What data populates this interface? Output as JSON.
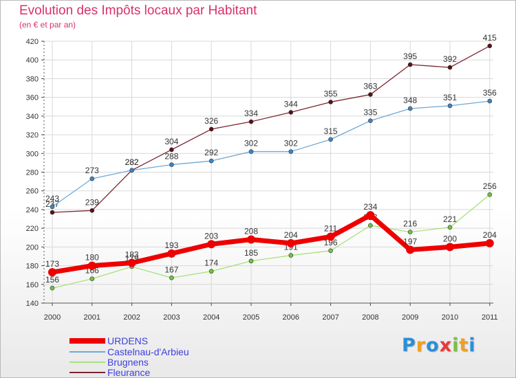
{
  "header": {
    "title": "Evolution des Impôts locaux par Habitant",
    "subtitle": "(en € et par an)"
  },
  "colors": {
    "title": "#d9306b",
    "axis": "#333333",
    "grid": "#d8d8d8",
    "legend_text": "#3d3de0"
  },
  "chart_data": {
    "type": "line",
    "title": "Evolution des Impôts locaux par Habitant",
    "subtitle": "(en € et par an)",
    "xlabel": "",
    "ylabel": "",
    "x": [
      "2000",
      "2001",
      "2002",
      "2003",
      "2004",
      "2005",
      "2006",
      "2007",
      "2008",
      "2009",
      "2010",
      "2011"
    ],
    "ylim": [
      140,
      420
    ],
    "yticks": [
      "140",
      "160",
      "180",
      "200",
      "220",
      "240",
      "260",
      "280",
      "300",
      "320",
      "340",
      "360",
      "380",
      "400",
      "420"
    ],
    "grid": true,
    "legend_position": "bottom-left",
    "series": [
      {
        "name": "Fleurance",
        "color": "#7a2430",
        "marker": "#5a1018",
        "width": 1.3,
        "values": [
          237,
          239,
          282,
          304,
          326,
          334,
          344,
          355,
          363,
          395,
          392,
          415
        ],
        "labels": [
          "237",
          "239",
          "282",
          "304",
          "326",
          "334",
          "344",
          "355",
          "363",
          "395",
          "392",
          "415"
        ]
      },
      {
        "name": "Castelnau-d'Arbieu",
        "color": "#6fa8d6",
        "marker": "#3a86c8",
        "width": 1.3,
        "values": [
          243,
          273,
          282,
          288,
          292,
          302,
          302,
          315,
          335,
          348,
          351,
          356
        ],
        "labels": [
          "243",
          "273",
          "282",
          "288",
          "292",
          "302",
          "302",
          "315",
          "335",
          "348",
          "351",
          "356"
        ]
      },
      {
        "name": "Brugnens",
        "color": "#a8e07a",
        "marker": "#6cc83a",
        "width": 1.3,
        "values": [
          156,
          166,
          179,
          167,
          174,
          185,
          191,
          196,
          223,
          216,
          221,
          256
        ],
        "labels": [
          "156",
          "166",
          "179",
          "167",
          "174",
          "185",
          "191",
          "196",
          "223",
          "216",
          "221",
          "256"
        ]
      },
      {
        "name": "URDENS",
        "color": "#ee0000",
        "marker": "#ee0000",
        "width": 7,
        "values": [
          173,
          180,
          183,
          193,
          203,
          208,
          204,
          211,
          234,
          197,
          200,
          204
        ],
        "labels": [
          "173",
          "180",
          "183",
          "193",
          "203",
          "208",
          "204",
          "211",
          "234",
          "197",
          "200",
          "204"
        ]
      }
    ]
  },
  "legend": [
    {
      "label": "URDENS",
      "color": "#ee0000",
      "thickness": 7
    },
    {
      "label": "Castelnau-d'Arbieu",
      "color": "#6fa8d6",
      "thickness": 2
    },
    {
      "label": "Brugnens",
      "color": "#a8e07a",
      "thickness": 2
    },
    {
      "label": "Fleurance",
      "color": "#7a2430",
      "thickness": 2
    }
  ],
  "logo": {
    "letters": [
      "P",
      "r",
      "o",
      "x",
      "i",
      "t",
      "i"
    ],
    "colors": [
      "#2a8fd8",
      "#f0a020",
      "#2a8fd8",
      "#e83a3a",
      "#7ac143",
      "#f0a020",
      "#2a8fd8"
    ]
  }
}
